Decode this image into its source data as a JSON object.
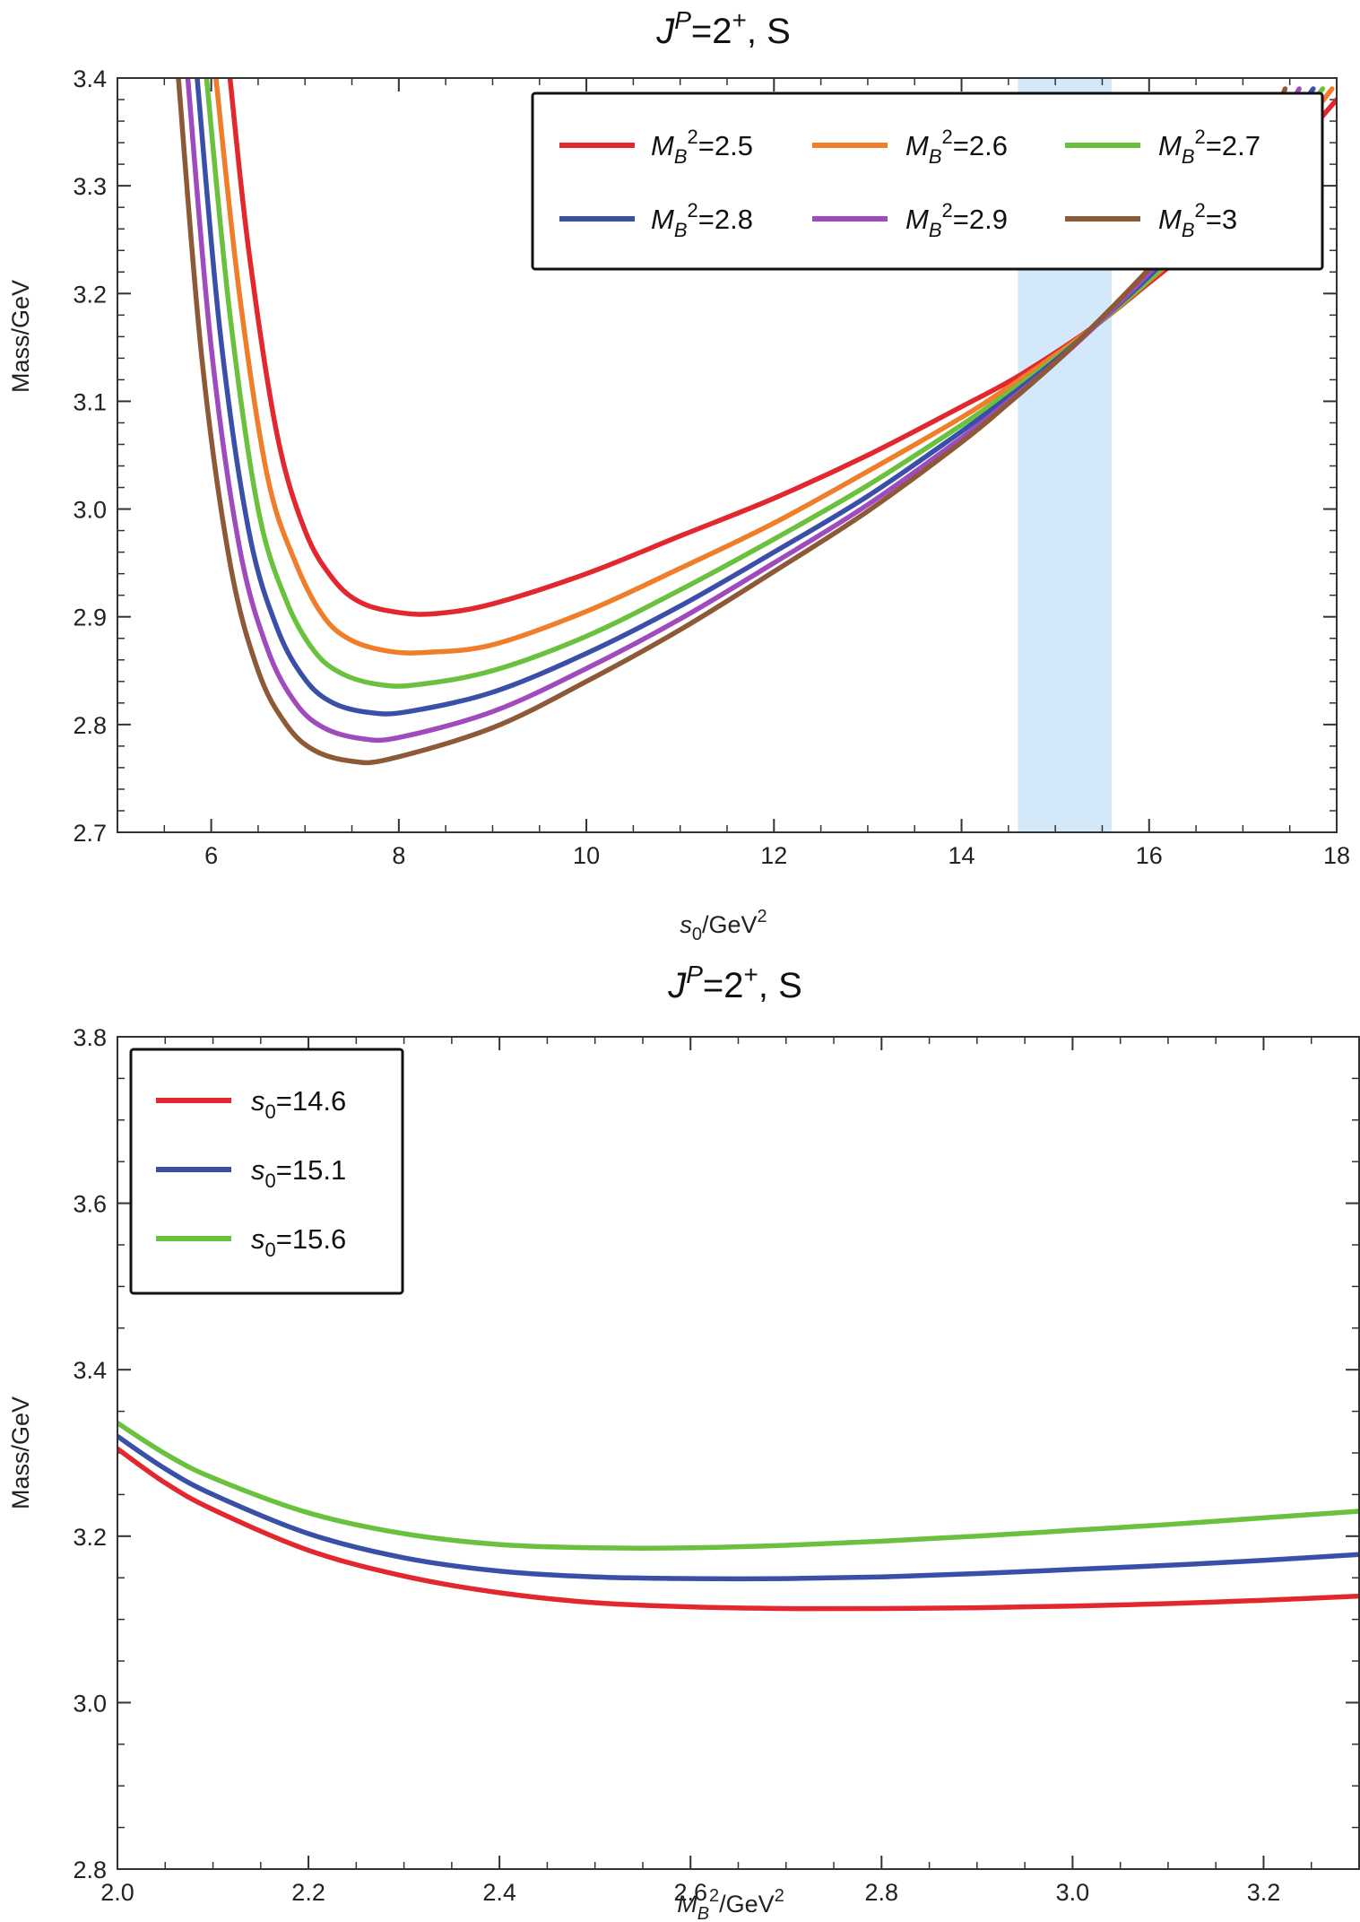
{
  "colors": {
    "red": "#e2272e",
    "orange": "#ef7d2a",
    "green": "#6ac13e",
    "blue": "#3a50a8",
    "purple": "#a04bbd",
    "brown": "#8c5a37",
    "band": "#d3e8f8"
  },
  "chart_data": [
    {
      "type": "line",
      "title": "J^P=2^+, S",
      "title_parts": {
        "j": "J",
        "p": "P",
        "eq": "=2",
        "plus": "+",
        "tail": ", S"
      },
      "xlabel": "s0/GeV2",
      "xlabel_parts": {
        "s": "s",
        "sub": "0",
        "unit": "/GeV",
        "sup": "2"
      },
      "ylabel": "Mass/GeV",
      "xlim": [
        5,
        18
      ],
      "ylim": [
        2.7,
        3.4
      ],
      "xticks": [
        "6",
        "8",
        "10",
        "12",
        "14",
        "16",
        "18"
      ],
      "yticks": [
        "2.7",
        "2.8",
        "2.9",
        "3.0",
        "3.1",
        "3.2",
        "3.3",
        "3.4"
      ],
      "shaded_band": [
        14.6,
        15.6
      ],
      "legend_location": "top-right",
      "series": [
        {
          "name": "MB2=2.5",
          "legend": {
            "m": "M",
            "sub": "B",
            "sup": "2",
            "val": "=2.5"
          },
          "color": "red",
          "x": [
            6.2,
            6.4,
            6.7,
            7.0,
            7.3,
            7.6,
            8.0,
            8.4,
            9.0,
            10.0,
            11.0,
            12.0,
            13.0,
            14.0,
            14.5,
            15.0,
            15.5,
            16.0,
            16.5,
            17.0,
            17.5,
            18.0
          ],
          "values": [
            3.4,
            3.24,
            3.07,
            2.98,
            2.935,
            2.913,
            2.904,
            2.903,
            2.912,
            2.94,
            2.975,
            3.01,
            3.05,
            3.095,
            3.118,
            3.145,
            3.175,
            3.21,
            3.245,
            3.285,
            3.33,
            3.38
          ]
        },
        {
          "name": "MB2=2.6",
          "legend": {
            "m": "M",
            "sub": "B",
            "sup": "2",
            "val": "=2.6"
          },
          "color": "orange",
          "x": [
            6.05,
            6.3,
            6.6,
            6.9,
            7.2,
            7.5,
            7.9,
            8.3,
            9.0,
            10.0,
            11.0,
            12.0,
            13.0,
            14.0,
            14.5,
            15.0,
            15.5,
            16.0,
            16.5,
            17.0,
            17.5,
            17.95
          ],
          "values": [
            3.4,
            3.2,
            3.03,
            2.95,
            2.9,
            2.878,
            2.868,
            2.867,
            2.874,
            2.905,
            2.945,
            2.987,
            3.035,
            3.085,
            3.113,
            3.143,
            3.175,
            3.212,
            3.25,
            3.292,
            3.34,
            3.39
          ]
        },
        {
          "name": "MB2=2.7",
          "legend": {
            "m": "M",
            "sub": "B",
            "sup": "2",
            "val": "=2.7"
          },
          "color": "green",
          "x": [
            5.95,
            6.2,
            6.5,
            6.8,
            7.1,
            7.4,
            7.8,
            8.2,
            9.0,
            10.0,
            11.0,
            12.0,
            13.0,
            14.0,
            14.5,
            15.0,
            15.5,
            16.0,
            16.5,
            17.0,
            17.5,
            17.85
          ],
          "values": [
            3.4,
            3.18,
            3.0,
            2.915,
            2.868,
            2.847,
            2.837,
            2.837,
            2.85,
            2.882,
            2.925,
            2.972,
            3.022,
            3.078,
            3.108,
            3.14,
            3.175,
            3.213,
            3.255,
            3.3,
            3.35,
            3.39
          ]
        },
        {
          "name": "MB2=2.8",
          "legend": {
            "m": "M",
            "sub": "B",
            "sup": "2",
            "val": "=2.8"
          },
          "color": "blue",
          "x": [
            5.85,
            6.1,
            6.4,
            6.7,
            7.0,
            7.3,
            7.7,
            8.1,
            9.0,
            10.0,
            11.0,
            12.0,
            13.0,
            14.0,
            14.5,
            15.0,
            15.5,
            16.0,
            16.5,
            17.0,
            17.5,
            17.75
          ],
          "values": [
            3.4,
            3.16,
            2.98,
            2.89,
            2.842,
            2.82,
            2.811,
            2.812,
            2.83,
            2.866,
            2.91,
            2.96,
            3.012,
            3.072,
            3.104,
            3.138,
            3.176,
            3.216,
            3.26,
            3.308,
            3.36,
            3.39
          ]
        },
        {
          "name": "MB2=2.9",
          "legend": {
            "m": "M",
            "sub": "B",
            "sup": "2",
            "val": "=2.9"
          },
          "color": "purple",
          "x": [
            5.75,
            6.0,
            6.3,
            6.6,
            6.9,
            7.2,
            7.6,
            8.0,
            9.0,
            10.0,
            11.0,
            12.0,
            13.0,
            14.0,
            14.5,
            15.0,
            15.5,
            16.0,
            16.5,
            17.0,
            17.4,
            17.6
          ],
          "values": [
            3.4,
            3.15,
            2.965,
            2.87,
            2.82,
            2.797,
            2.787,
            2.788,
            2.812,
            2.852,
            2.898,
            2.95,
            3.004,
            3.066,
            3.1,
            3.136,
            3.176,
            3.219,
            3.265,
            3.316,
            3.36,
            3.39
          ]
        },
        {
          "name": "MB2=3",
          "legend": {
            "m": "M",
            "sub": "B",
            "sup": "2",
            "val": "=3"
          },
          "color": "brown",
          "x": [
            5.65,
            5.9,
            6.2,
            6.5,
            6.8,
            7.1,
            7.5,
            7.9,
            9.0,
            10.0,
            11.0,
            12.0,
            13.0,
            14.0,
            14.5,
            15.0,
            15.5,
            16.0,
            16.5,
            17.0,
            17.3,
            17.45
          ],
          "values": [
            3.4,
            3.14,
            2.95,
            2.85,
            2.8,
            2.776,
            2.766,
            2.768,
            2.797,
            2.84,
            2.888,
            2.942,
            2.998,
            3.062,
            3.098,
            3.136,
            3.178,
            3.223,
            3.272,
            3.325,
            3.36,
            3.39
          ]
        }
      ]
    },
    {
      "type": "line",
      "title": "J^P=2^+, S",
      "title_parts": {
        "j": "J",
        "p": "P",
        "eq": "=2",
        "plus": "+",
        "tail": ", S"
      },
      "xlabel": "MB2/GeV2",
      "xlabel_parts": {
        "m": "M",
        "sub": "B",
        "sup": "2",
        "unit": "/GeV",
        "sup2": "2"
      },
      "ylabel": "Mass/GeV",
      "xlim": [
        2.0,
        3.3
      ],
      "ylim": [
        2.8,
        3.8
      ],
      "xticks": [
        "2.0",
        "2.2",
        "2.4",
        "2.6",
        "2.8",
        "3.0",
        "3.2"
      ],
      "yticks": [
        "2.8",
        "3.0",
        "3.2",
        "3.4",
        "3.6",
        "3.8"
      ],
      "legend_location": "top-left",
      "series": [
        {
          "name": "s0=14.6",
          "legend": {
            "s": "s",
            "sub": "0",
            "val": "=14.6"
          },
          "color": "red",
          "x": [
            2.0,
            2.05,
            2.1,
            2.2,
            2.3,
            2.4,
            2.5,
            2.6,
            2.7,
            2.8,
            2.9,
            3.0,
            3.1,
            3.2,
            3.3
          ],
          "values": [
            3.305,
            3.264,
            3.232,
            3.183,
            3.152,
            3.132,
            3.12,
            3.115,
            3.113,
            3.113,
            3.114,
            3.116,
            3.119,
            3.123,
            3.128
          ]
        },
        {
          "name": "s0=15.1",
          "legend": {
            "s": "s",
            "sub": "0",
            "val": "=15.1"
          },
          "color": "blue",
          "x": [
            2.0,
            2.05,
            2.1,
            2.2,
            2.3,
            2.4,
            2.5,
            2.6,
            2.7,
            2.8,
            2.9,
            3.0,
            3.1,
            3.2,
            3.3
          ],
          "values": [
            3.32,
            3.281,
            3.25,
            3.203,
            3.174,
            3.158,
            3.151,
            3.149,
            3.149,
            3.151,
            3.155,
            3.16,
            3.165,
            3.171,
            3.178
          ]
        },
        {
          "name": "s0=15.6",
          "legend": {
            "s": "s",
            "sub": "0",
            "val": "=15.6"
          },
          "color": "green",
          "x": [
            2.0,
            2.05,
            2.1,
            2.2,
            2.3,
            2.4,
            2.5,
            2.6,
            2.7,
            2.8,
            2.9,
            3.0,
            3.1,
            3.2,
            3.3
          ],
          "values": [
            3.336,
            3.299,
            3.27,
            3.228,
            3.203,
            3.19,
            3.186,
            3.186,
            3.189,
            3.194,
            3.2,
            3.207,
            3.214,
            3.222,
            3.23
          ]
        }
      ]
    }
  ]
}
